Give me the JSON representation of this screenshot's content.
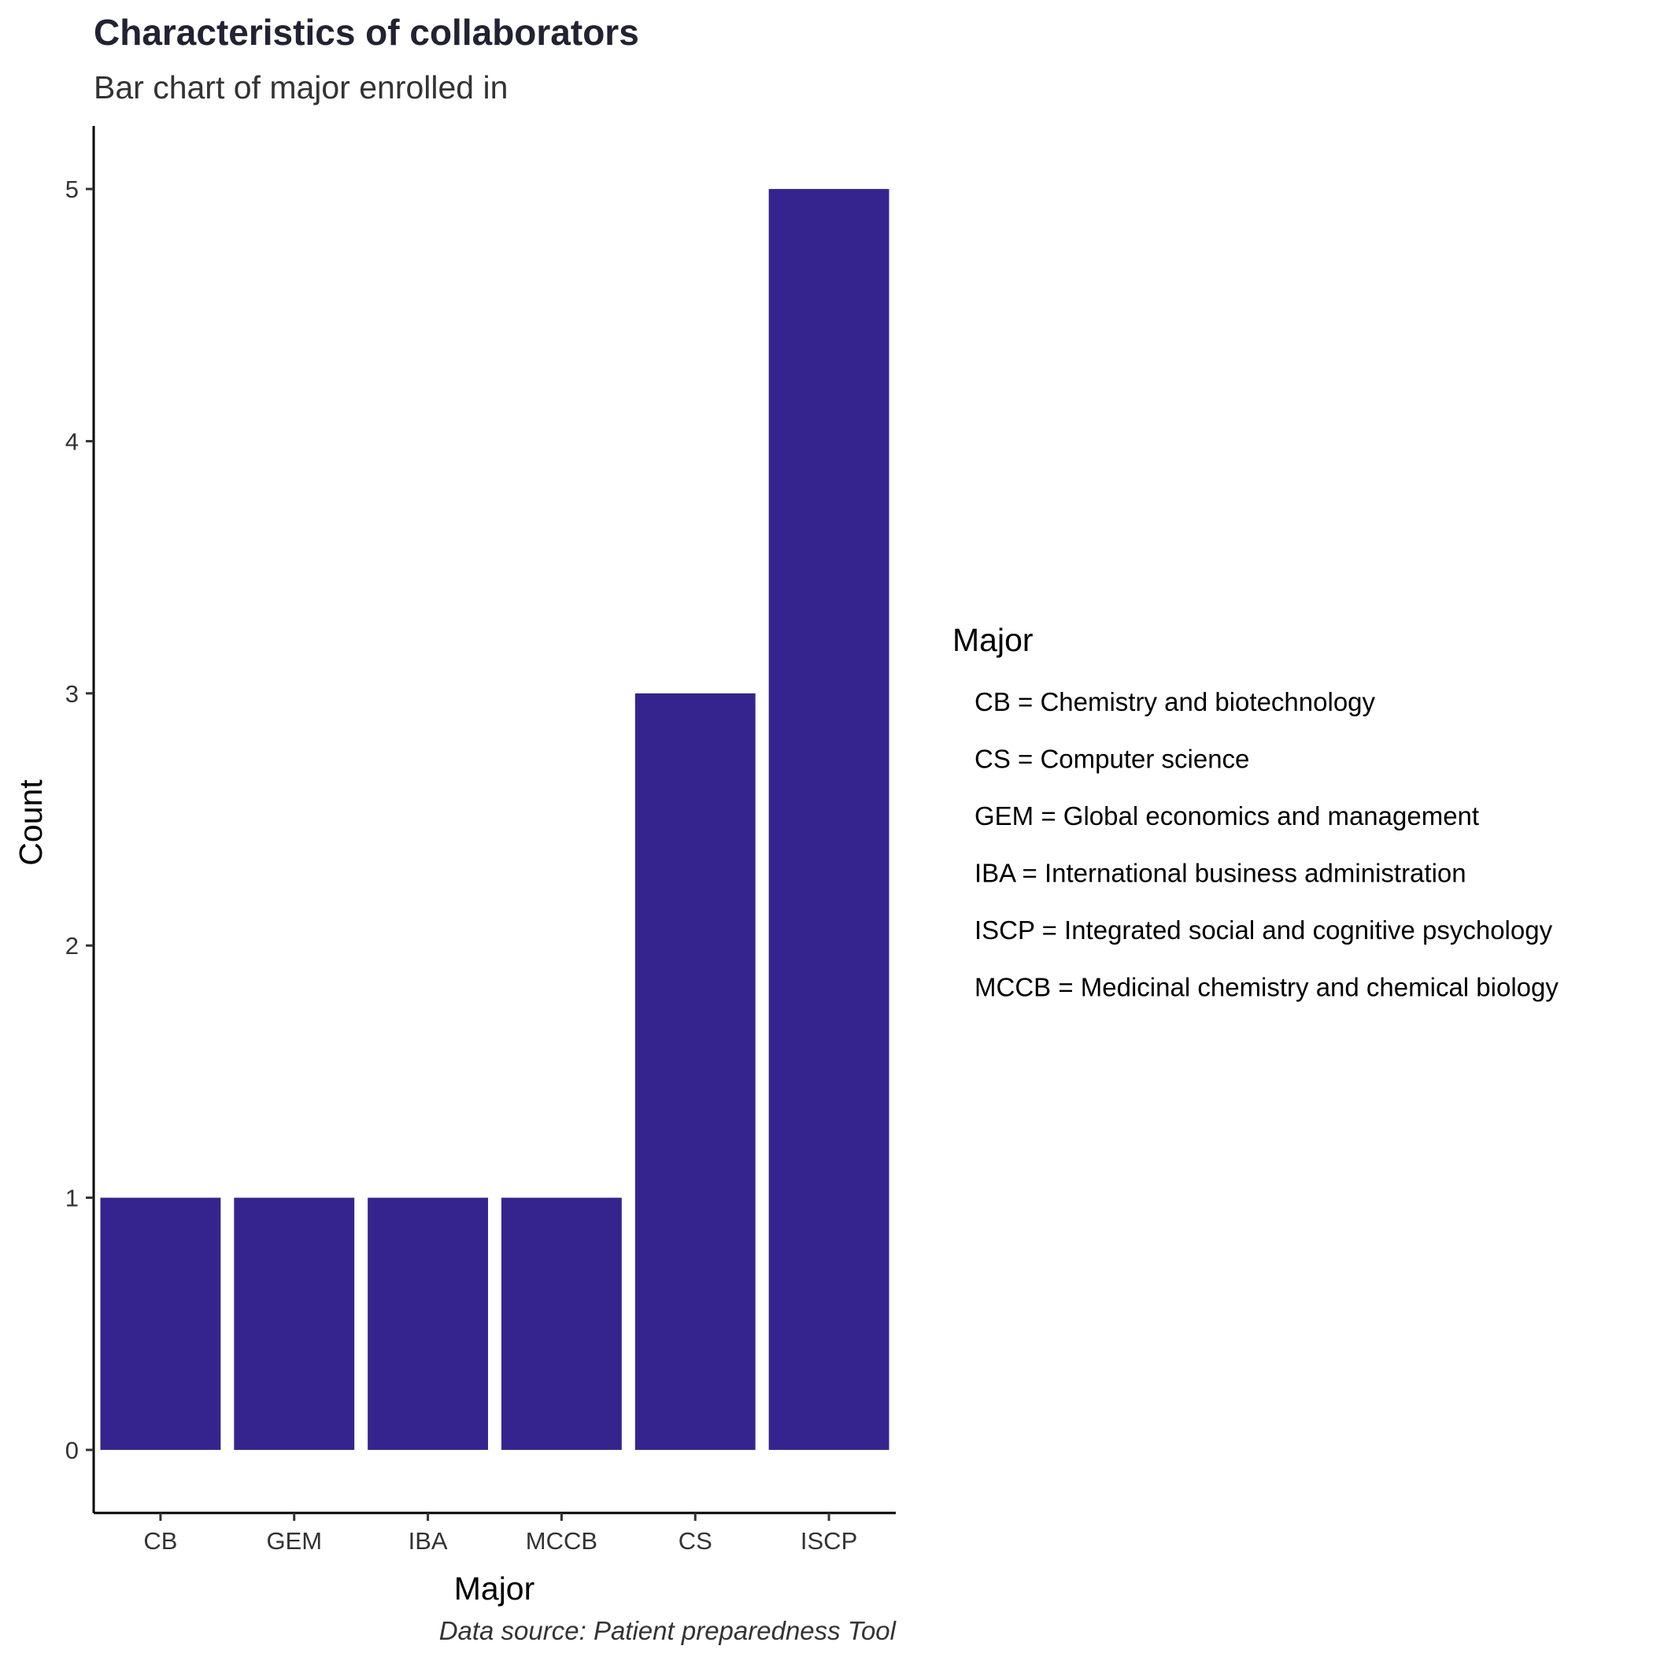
{
  "chart_data": {
    "type": "bar",
    "title": "Characteristics of collaborators",
    "subtitle": "Bar chart of major enrolled in",
    "xlabel": "Major",
    "ylabel": "Count",
    "categories": [
      "CB",
      "GEM",
      "IBA",
      "MCCB",
      "CS",
      "ISCP"
    ],
    "values": [
      1,
      1,
      1,
      1,
      3,
      5
    ],
    "ylim": [
      -0.25,
      5.25
    ],
    "yticks": [
      0,
      1,
      2,
      3,
      4,
      5
    ],
    "bar_color": "#35248E",
    "grid": false,
    "legend": {
      "title": "Major",
      "position": "right",
      "items": [
        "CB = Chemistry and biotechnology",
        "CS = Computer science",
        "GEM = Global economics and management",
        "IBA = International business administration",
        "ISCP = Integrated social and cognitive psychology",
        "MCCB = Medicinal chemistry and chemical biology"
      ]
    },
    "caption": "Data source: Patient preparedness Tool"
  }
}
